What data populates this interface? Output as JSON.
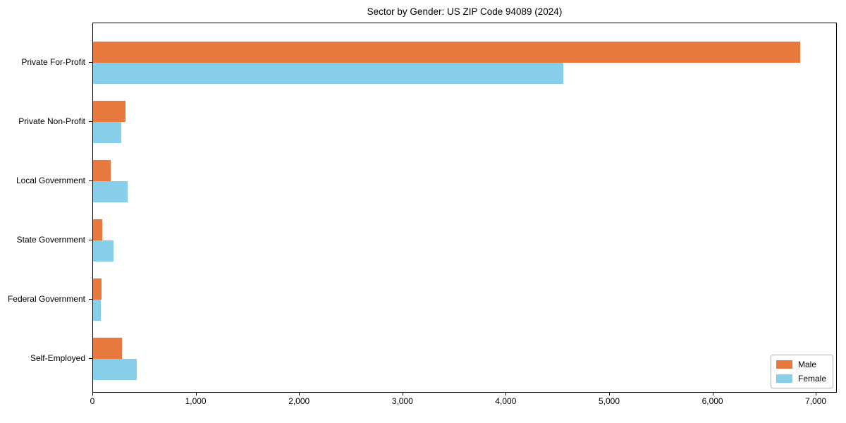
{
  "chart_data": {
    "type": "bar",
    "orientation": "horizontal",
    "title": "Sector by Gender: US ZIP Code 94089 (2024)",
    "categories": [
      "Private For-Profit",
      "Private Non-Profit",
      "Local Government",
      "State Government",
      "Federal Government",
      "Self-Employed"
    ],
    "series": [
      {
        "name": "Male",
        "color": "#e8793e",
        "values": [
          6840,
          315,
          170,
          85,
          80,
          280
        ]
      },
      {
        "name": "Female",
        "color": "#87ceeb",
        "values": [
          4550,
          270,
          335,
          200,
          75,
          420
        ]
      }
    ],
    "xlabel": "",
    "ylabel": "",
    "xlim": [
      0,
      7190
    ],
    "x_ticks": [
      0,
      1000,
      2000,
      3000,
      4000,
      5000,
      6000,
      7000
    ],
    "x_tick_labels": [
      "0",
      "1,000",
      "2,000",
      "3,000",
      "4,000",
      "5,000",
      "6,000",
      "7,000"
    ],
    "grid": false,
    "legend": {
      "position": "lower-right",
      "entries": [
        "Male",
        "Female"
      ]
    },
    "colors": {
      "axis": "#000000",
      "legend_border": "#b0b0b0",
      "background": "#ffffff"
    }
  }
}
